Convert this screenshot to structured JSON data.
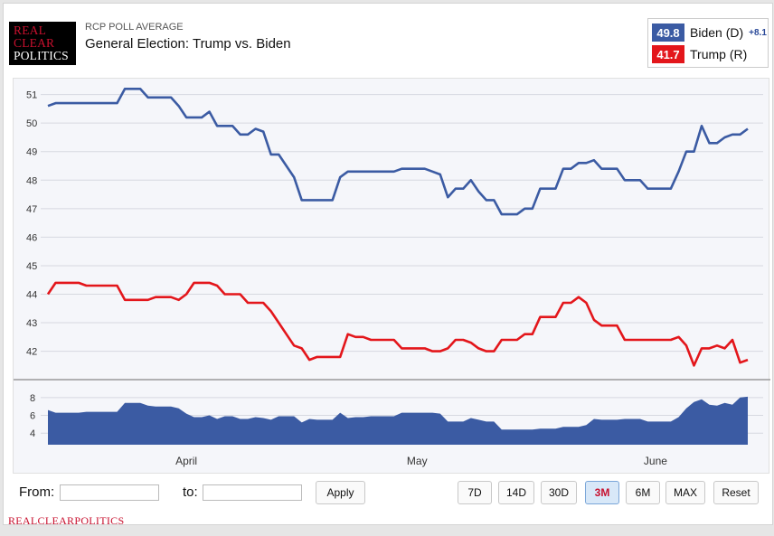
{
  "header": {
    "logo_lines": [
      "REAL",
      "CLEAR",
      "POLITICS"
    ],
    "kicker": "RCP POLL AVERAGE",
    "title": "General Election: Trump vs. Biden"
  },
  "legend": {
    "biden": {
      "value": "49.8",
      "name": "Biden (D)",
      "spread": "+8.1",
      "color": "#3b5ba3"
    },
    "trump": {
      "value": "41.7",
      "name": "Trump (R)",
      "color": "#e3161b"
    }
  },
  "controls": {
    "from_label": "From:",
    "to_label": "to:",
    "from_value": "",
    "to_value": "",
    "apply_label": "Apply",
    "ranges": [
      {
        "label": "7D",
        "active": false
      },
      {
        "label": "14D",
        "active": false
      },
      {
        "label": "30D",
        "active": false
      },
      {
        "label": "3M",
        "active": true
      },
      {
        "label": "6M",
        "active": false
      },
      {
        "label": "MAX",
        "active": false
      },
      {
        "label": "Reset",
        "active": false
      }
    ]
  },
  "footer": {
    "brand": "REALCLEARPOLITICS"
  },
  "chart_data": {
    "type": "line",
    "title": "General Election: Trump vs. Biden",
    "x_month_labels": [
      {
        "label": "April",
        "index": 18
      },
      {
        "label": "May",
        "index": 48
      },
      {
        "label": "June",
        "index": 79
      }
    ],
    "ylim": [
      41.1,
      51.4
    ],
    "yticks": [
      42,
      43,
      44,
      45,
      46,
      47,
      48,
      49,
      50,
      51
    ],
    "series": [
      {
        "name": "Biden (D)",
        "color": "#3b5ba3",
        "values": [
          50.6,
          50.7,
          50.7,
          50.7,
          50.7,
          50.7,
          50.7,
          50.7,
          50.7,
          50.7,
          51.2,
          51.2,
          51.2,
          50.9,
          50.9,
          50.9,
          50.9,
          50.6,
          50.2,
          50.2,
          50.2,
          50.4,
          49.9,
          49.9,
          49.9,
          49.6,
          49.6,
          49.8,
          49.7,
          48.9,
          48.9,
          48.5,
          48.1,
          47.3,
          47.3,
          47.3,
          47.3,
          47.3,
          48.1,
          48.3,
          48.3,
          48.3,
          48.3,
          48.3,
          48.3,
          48.3,
          48.4,
          48.4,
          48.4,
          48.4,
          48.3,
          48.2,
          47.4,
          47.7,
          47.7,
          48.0,
          47.6,
          47.3,
          47.3,
          46.8,
          46.8,
          46.8,
          47.0,
          47.0,
          47.7,
          47.7,
          47.7,
          48.4,
          48.4,
          48.6,
          48.6,
          48.7,
          48.4,
          48.4,
          48.4,
          48.0,
          48.0,
          48.0,
          47.7,
          47.7,
          47.7,
          47.7,
          48.3,
          49.0,
          49.0,
          49.9,
          49.3,
          49.3,
          49.5,
          49.6,
          49.6,
          49.8
        ]
      },
      {
        "name": "Trump (R)",
        "color": "#e3161b",
        "values": [
          44.0,
          44.4,
          44.4,
          44.4,
          44.4,
          44.3,
          44.3,
          44.3,
          44.3,
          44.3,
          43.8,
          43.8,
          43.8,
          43.8,
          43.9,
          43.9,
          43.9,
          43.8,
          44.0,
          44.4,
          44.4,
          44.4,
          44.3,
          44.0,
          44.0,
          44.0,
          43.7,
          43.7,
          43.7,
          43.4,
          43.0,
          42.6,
          42.2,
          42.1,
          41.7,
          41.8,
          41.8,
          41.8,
          41.8,
          42.6,
          42.5,
          42.5,
          42.4,
          42.4,
          42.4,
          42.4,
          42.1,
          42.1,
          42.1,
          42.1,
          42.0,
          42.0,
          42.1,
          42.4,
          42.4,
          42.3,
          42.1,
          42.0,
          42.0,
          42.4,
          42.4,
          42.4,
          42.6,
          42.6,
          43.2,
          43.2,
          43.2,
          43.7,
          43.7,
          43.9,
          43.7,
          43.1,
          42.9,
          42.9,
          42.9,
          42.4,
          42.4,
          42.4,
          42.4,
          42.4,
          42.4,
          42.4,
          42.5,
          42.2,
          41.5,
          42.1,
          42.1,
          42.2,
          42.1,
          42.4,
          41.6,
          41.7
        ]
      }
    ],
    "spread_panel": {
      "name": "Spread",
      "color": "#3b5ba3",
      "yticks": [
        4,
        6,
        8
      ],
      "ylim": [
        2.7,
        9.0
      ],
      "values": [
        6.6,
        6.3,
        6.3,
        6.3,
        6.3,
        6.4,
        6.4,
        6.4,
        6.4,
        6.4,
        7.4,
        7.4,
        7.4,
        7.1,
        7.0,
        7.0,
        7.0,
        6.8,
        6.2,
        5.8,
        5.8,
        6.0,
        5.6,
        5.9,
        5.9,
        5.6,
        5.6,
        5.8,
        5.7,
        5.5,
        5.9,
        5.9,
        5.9,
        5.2,
        5.6,
        5.5,
        5.5,
        5.5,
        6.3,
        5.7,
        5.8,
        5.8,
        5.9,
        5.9,
        5.9,
        5.9,
        6.3,
        6.3,
        6.3,
        6.3,
        6.3,
        6.2,
        5.3,
        5.3,
        5.3,
        5.7,
        5.5,
        5.3,
        5.3,
        4.4,
        4.4,
        4.4,
        4.4,
        4.4,
        4.5,
        4.5,
        4.5,
        4.7,
        4.7,
        4.7,
        4.9,
        5.6,
        5.5,
        5.5,
        5.5,
        5.6,
        5.6,
        5.6,
        5.3,
        5.3,
        5.3,
        5.3,
        5.8,
        6.8,
        7.5,
        7.8,
        7.2,
        7.1,
        7.4,
        7.2,
        8.0,
        8.1
      ]
    }
  }
}
